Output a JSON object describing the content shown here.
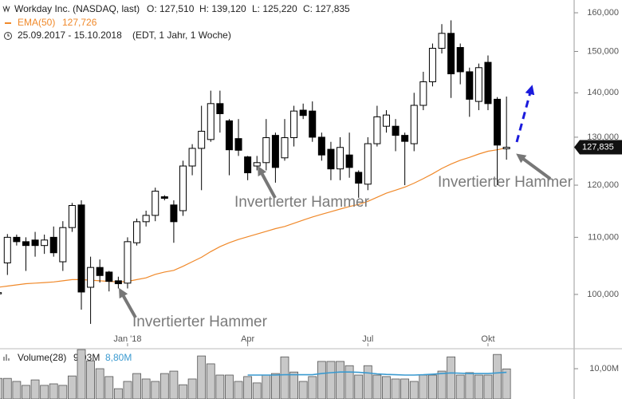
{
  "chart_data": [
    {
      "type": "candlestick",
      "header": {
        "title": "Workday Inc. (NASDAQ, last)",
        "open": "O: 127,510",
        "high": "H: 139,120",
        "low": "L: 125,220",
        "close": "C: 127,835",
        "period": "25.09.2017 - 15.10.2018",
        "info": "(EDT, 1 Jahr, 1 Woche)"
      },
      "categories": [
        null,
        null,
        null,
        null,
        null,
        null,
        null,
        null,
        null,
        null,
        null,
        null,
        null,
        null,
        "Jan '18",
        null,
        null,
        null,
        null,
        null,
        null,
        null,
        null,
        null,
        null,
        null,
        null,
        "Apr",
        null,
        null,
        null,
        null,
        null,
        null,
        null,
        null,
        null,
        null,
        null,
        null,
        "Jul",
        null,
        null,
        null,
        null,
        null,
        null,
        null,
        null,
        null,
        null,
        null,
        null,
        "Okt",
        null,
        null
      ],
      "open": [
        100100,
        105400,
        110000,
        109200,
        109500,
        108500,
        110000,
        105600,
        111800,
        116100,
        101200,
        104600,
        103800,
        102300,
        101900,
        109000,
        112900,
        114100,
        117700,
        116100,
        115000,
        123900,
        127600,
        129500,
        137500,
        133600,
        129700,
        125800,
        123900,
        124600,
        130400,
        125600,
        129900,
        136000,
        135800,
        130000,
        127400,
        123300,
        126200,
        122600,
        120200,
        128600,
        132400,
        132400,
        130400,
        128600,
        137100,
        142600,
        150800,
        154600,
        151000,
        145000,
        138000,
        147300,
        138500,
        127510
      ],
      "high": [
        100600,
        110600,
        110500,
        110000,
        111000,
        110500,
        112000,
        113000,
        116500,
        117000,
        106500,
        106000,
        104000,
        103000,
        110000,
        113500,
        115000,
        119500,
        118000,
        117000,
        125000,
        128500,
        137000,
        140500,
        140500,
        134000,
        134000,
        126000,
        126000,
        134000,
        131000,
        134000,
        137000,
        137500,
        138000,
        131000,
        129000,
        130000,
        131000,
        123000,
        130000,
        137000,
        136000,
        134000,
        131000,
        140000,
        145000,
        152000,
        157000,
        158000,
        152000,
        146000,
        147000,
        149000,
        139000,
        139120
      ],
      "low": [
        99900,
        103300,
        108500,
        104000,
        106500,
        107000,
        106500,
        104000,
        111000,
        97500,
        95200,
        102000,
        100500,
        101000,
        101000,
        108500,
        112000,
        113000,
        117000,
        109000,
        114000,
        122000,
        119000,
        129000,
        131000,
        122000,
        126000,
        121000,
        123000,
        123000,
        120500,
        125000,
        128000,
        134000,
        129000,
        125000,
        121000,
        121000,
        121500,
        117500,
        119000,
        128000,
        131000,
        127000,
        120000,
        127000,
        136000,
        141500,
        149500,
        138800,
        142000,
        134500,
        136000,
        136000,
        120000,
        125220
      ],
      "close": [
        100300,
        110000,
        109200,
        108500,
        108500,
        109500,
        107200,
        111800,
        116000,
        100400,
        104600,
        103200,
        102200,
        101800,
        109200,
        112900,
        114100,
        118800,
        117400,
        112900,
        123900,
        127600,
        131300,
        137500,
        135200,
        127300,
        127200,
        122500,
        124600,
        129900,
        123600,
        129900,
        135800,
        134800,
        130000,
        126200,
        123300,
        127800,
        123600,
        120400,
        128600,
        134500,
        134900,
        130400,
        129100,
        137100,
        142600,
        150800,
        154600,
        144500,
        145000,
        138500,
        146000,
        137500,
        128300,
        127835
      ],
      "close_labels": [
        null,
        null,
        null,
        null,
        null,
        null,
        null,
        null,
        null,
        null,
        null,
        null,
        null,
        null,
        null,
        null,
        null,
        null,
        null,
        null,
        null,
        null,
        null,
        null,
        null,
        null,
        null,
        null,
        null,
        null,
        null,
        null,
        null,
        null,
        null,
        null,
        null,
        null,
        null,
        null,
        null,
        null,
        null,
        null,
        null,
        null,
        null,
        null,
        null,
        null,
        null,
        null,
        null,
        null,
        null,
        "127,835"
      ],
      "up_color": "#ffffff",
      "down_color": "#000000",
      "series": [
        {
          "name": "EMA(50)",
          "color": "#f0892a",
          "values": [
            101200,
            101400,
            101600,
            101800,
            101900,
            102000,
            102100,
            102300,
            102500,
            102500,
            102400,
            102300,
            102200,
            102100,
            102200,
            102500,
            102800,
            103400,
            103800,
            104100,
            104800,
            105600,
            106400,
            107400,
            108300,
            109000,
            109600,
            110100,
            110600,
            111100,
            111600,
            112000,
            112600,
            113200,
            113800,
            114300,
            114800,
            115300,
            115800,
            116200,
            116800,
            117600,
            118400,
            119000,
            119600,
            120400,
            121300,
            122300,
            123400,
            124300,
            125100,
            125700,
            126400,
            127000,
            127300,
            127726
          ],
          "value_labels": [
            null,
            null,
            null,
            null,
            null,
            null,
            null,
            null,
            null,
            null,
            null,
            null,
            null,
            null,
            null,
            null,
            null,
            null,
            null,
            null,
            null,
            null,
            null,
            null,
            null,
            null,
            null,
            null,
            null,
            null,
            null,
            null,
            null,
            null,
            null,
            null,
            null,
            null,
            null,
            null,
            null,
            null,
            null,
            null,
            null,
            null,
            null,
            null,
            null,
            null,
            null,
            null,
            null,
            null,
            null,
            "127,726"
          ]
        }
      ],
      "log_scale": true,
      "ylim": [
        92190,
        163450
      ],
      "yticks": [
        {
          "value": 100000,
          "label": "100,000"
        },
        {
          "value": 110000,
          "label": "110,000"
        },
        {
          "value": 120000,
          "label": "120,000"
        },
        {
          "value": 130000,
          "label": "130,000"
        },
        {
          "value": 140000,
          "label": "140,000"
        },
        {
          "value": 150000,
          "label": "150,000"
        },
        {
          "value": 160000,
          "label": "160,000"
        }
      ],
      "annotations": [
        "Invertierter Hammer",
        "Invertierter Hammer",
        "Invertierter Hammer"
      ]
    },
    {
      "type": "bar",
      "title": "Volume(28)",
      "color": "#c8c8c8",
      "values": [
        6800000,
        6800000,
        5800000,
        4500000,
        6300000,
        4500000,
        5000000,
        4500000,
        7600000,
        16300000,
        12600000,
        10000000,
        7400000,
        3400000,
        5800000,
        8400000,
        6600000,
        5800000,
        8400000,
        9200000,
        4700000,
        6600000,
        14200000,
        11600000,
        7900000,
        7900000,
        5800000,
        7400000,
        5300000,
        7900000,
        8400000,
        13900000,
        8900000,
        5800000,
        7400000,
        12400000,
        12400000,
        12400000,
        11000000,
        7900000,
        11000000,
        7900000,
        7400000,
        6600000,
        6600000,
        5800000,
        7900000,
        7900000,
        9200000,
        13900000,
        7900000,
        8700000,
        7900000,
        7900000,
        14700000,
        9930000
      ],
      "value_labels": [
        null,
        null,
        null,
        null,
        null,
        null,
        null,
        null,
        null,
        null,
        null,
        null,
        null,
        null,
        null,
        null,
        null,
        null,
        null,
        null,
        null,
        null,
        null,
        null,
        null,
        null,
        null,
        null,
        null,
        null,
        null,
        null,
        null,
        null,
        null,
        null,
        null,
        null,
        null,
        null,
        null,
        null,
        null,
        null,
        null,
        null,
        null,
        null,
        null,
        null,
        null,
        null,
        null,
        null,
        null,
        "9,93M"
      ],
      "ma": {
        "color": "#3a9ad0",
        "values": [
          null,
          null,
          null,
          null,
          null,
          null,
          null,
          null,
          null,
          null,
          null,
          null,
          null,
          null,
          null,
          null,
          null,
          null,
          null,
          null,
          null,
          null,
          null,
          null,
          null,
          null,
          null,
          7900000,
          7900000,
          7900000,
          7900000,
          8000000,
          8000000,
          8000000,
          8000000,
          8400000,
          8700000,
          8900000,
          8900000,
          8800000,
          8600000,
          8300000,
          8100000,
          8000000,
          7900000,
          7900000,
          8000000,
          8200000,
          8400000,
          8600000,
          8500000,
          8400000,
          8400000,
          8400000,
          8600000,
          8800000
        ],
        "value_labels": [
          null,
          null,
          null,
          null,
          null,
          null,
          null,
          null,
          null,
          null,
          null,
          null,
          null,
          null,
          null,
          null,
          null,
          null,
          null,
          null,
          null,
          null,
          null,
          null,
          null,
          null,
          null,
          null,
          null,
          null,
          null,
          null,
          null,
          null,
          null,
          null,
          null,
          null,
          null,
          null,
          null,
          null,
          null,
          null,
          null,
          null,
          null,
          null,
          null,
          null,
          null,
          null,
          null,
          null,
          null,
          "8,80M"
        ]
      },
      "ylim": [
        0,
        15800000
      ],
      "yticks": [
        {
          "value": 10000000,
          "label": "10,00M"
        }
      ]
    }
  ]
}
